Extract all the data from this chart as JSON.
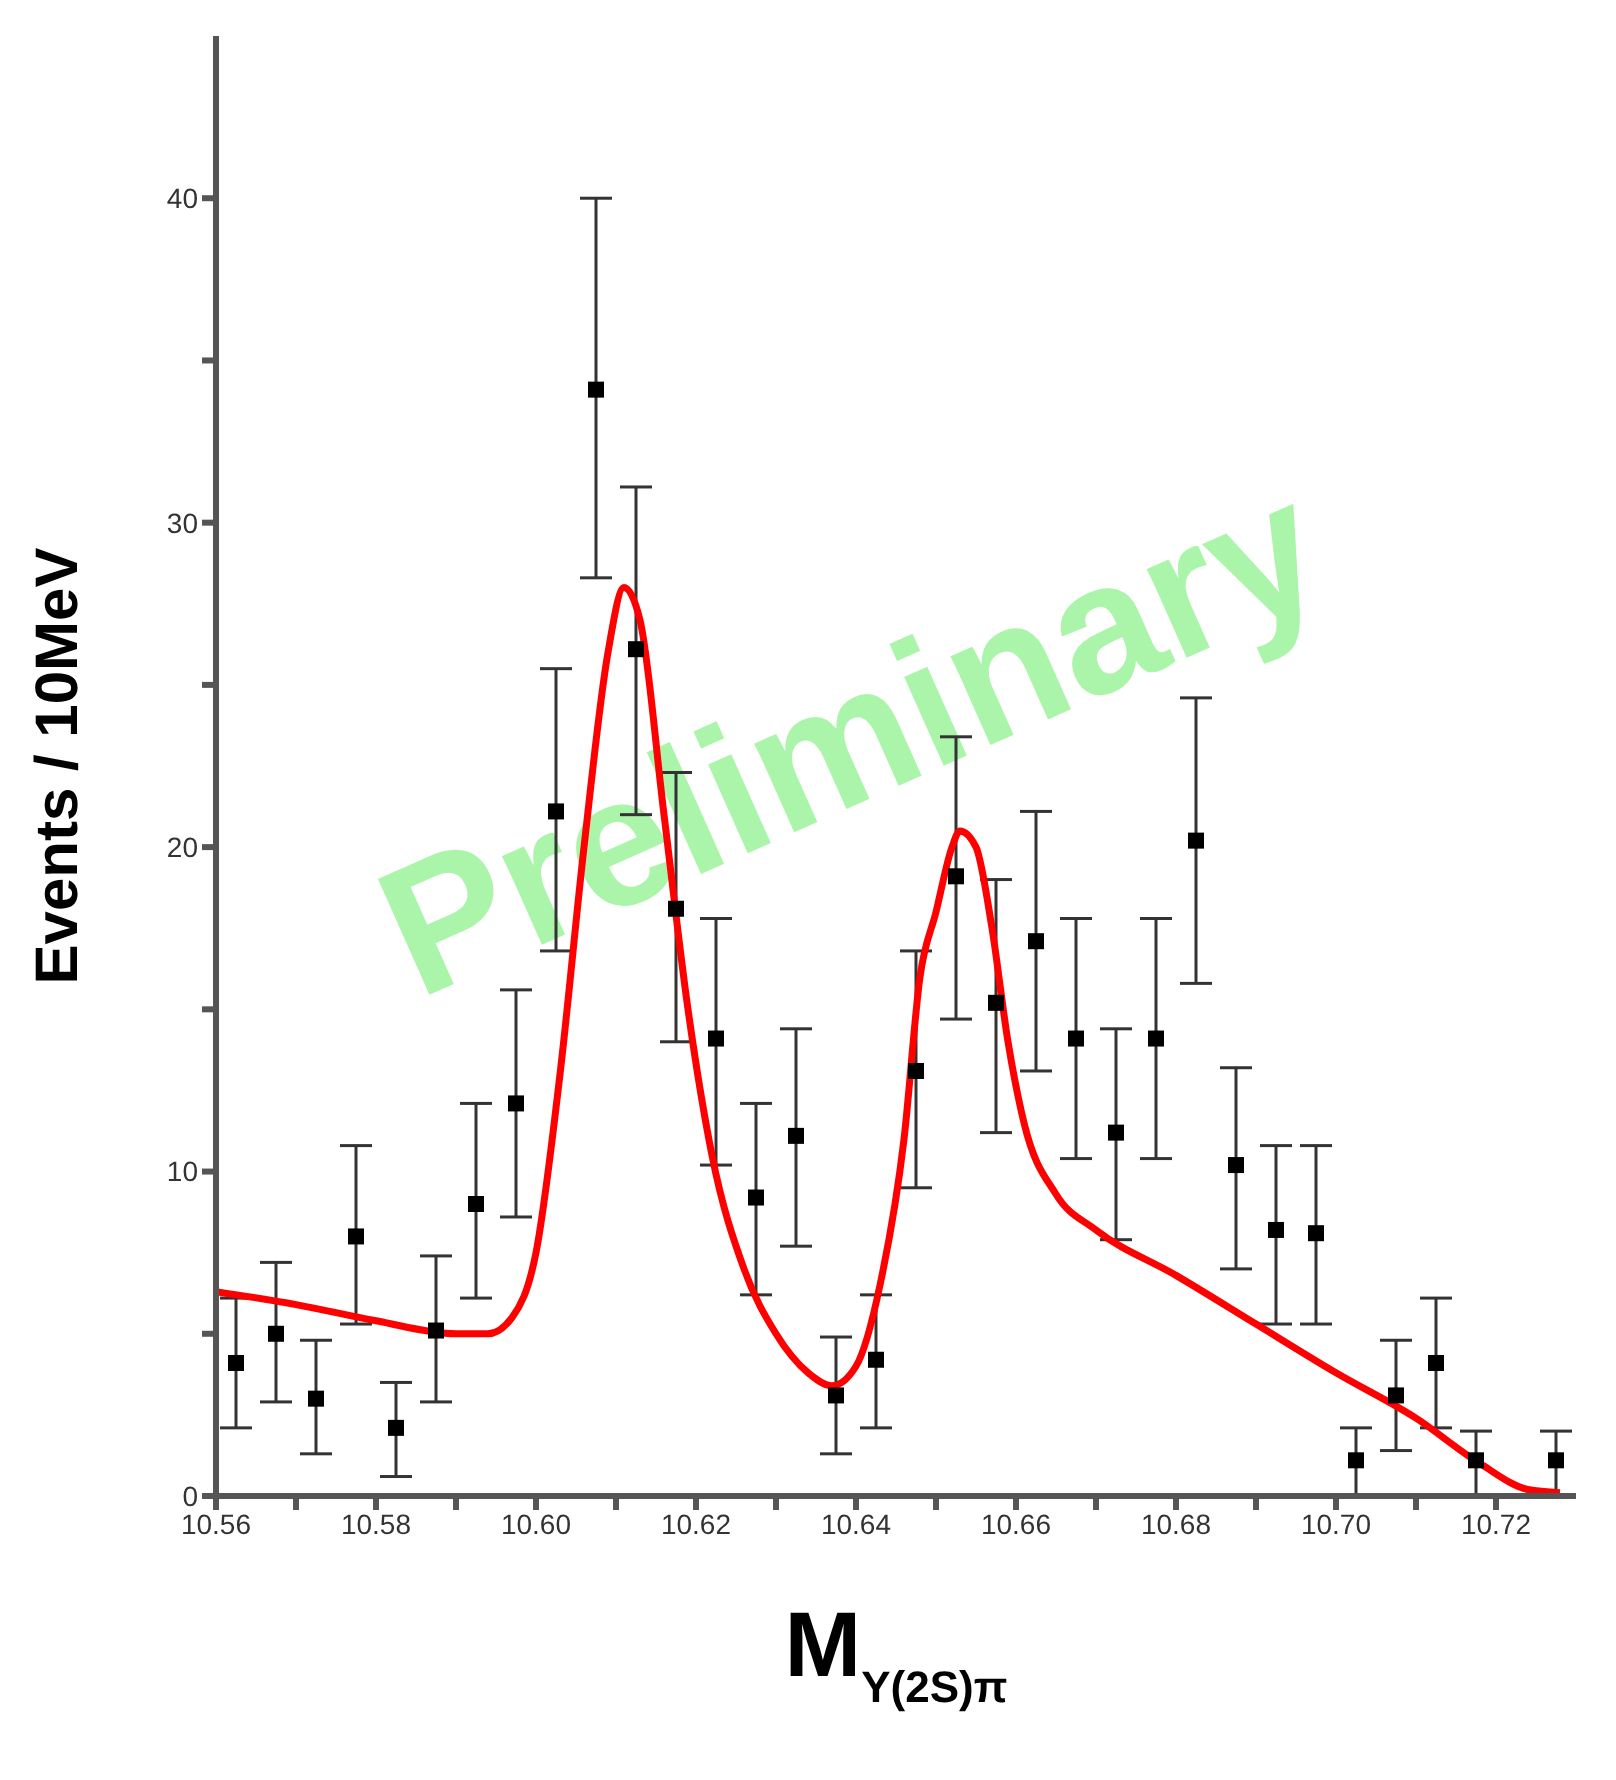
{
  "chart_data": {
    "type": "scatter",
    "xlabel": "M$_{Υ(2S)π}$",
    "ylabel": "Events / 10MeV",
    "annotations": [
      "Preliminary"
    ],
    "xlim": [
      10.56,
      10.73
    ],
    "ylim": [
      0,
      45
    ],
    "xticks": [
      10.56,
      {
        "value": 10.57,
        "label": null
      },
      10.58,
      {
        "value": 10.59,
        "label": null
      },
      {
        "value": 10.6,
        "label": "10.60"
      },
      {
        "value": 10.61,
        "label": null
      },
      10.62,
      {
        "value": 10.63,
        "label": null
      },
      10.64,
      {
        "value": 10.65,
        "label": null
      },
      10.66,
      {
        "value": 10.67,
        "label": null
      },
      10.68,
      {
        "value": 10.69,
        "label": null
      },
      {
        "value": 10.7,
        "label": "10.70"
      },
      {
        "value": 10.71,
        "label": null
      },
      10.72
    ],
    "yticks": [
      0,
      {
        "value": 5,
        "label": null
      },
      10,
      {
        "value": 15,
        "label": null
      },
      20,
      {
        "value": 25,
        "label": null
      },
      30,
      {
        "value": 35,
        "label": null
      },
      40
    ],
    "grid": false,
    "legend": false,
    "series": [
      {
        "color": "#000000",
        "marker": "square",
        "x": [
          10.5625,
          10.5675,
          10.5725,
          10.5775,
          10.5825,
          10.5875,
          10.5925,
          10.5975,
          10.6025,
          10.6075,
          10.6125,
          10.6175,
          10.6225,
          10.6275,
          10.6325,
          10.6375,
          10.6425,
          10.6475,
          10.6525,
          10.6575,
          10.6625,
          10.6675,
          10.6725,
          10.6775,
          10.6825,
          10.6875,
          10.6925,
          10.6975,
          10.7025,
          10.7075,
          10.7125,
          10.7175,
          10.7275
        ],
        "values": [
          4.1,
          5.0,
          3.0,
          8.0,
          2.1,
          5.1,
          9.0,
          12.1,
          21.1,
          34.1,
          26.1,
          18.1,
          14.1,
          9.2,
          11.1,
          3.1,
          4.2,
          13.1,
          19.1,
          15.2,
          17.1,
          14.1,
          11.2,
          14.1,
          20.2,
          10.2,
          8.2,
          8.1,
          1.1,
          3.1,
          4.1,
          1.1,
          1.1
        ],
        "errors": [
          [
            2.1,
            6.1
          ],
          [
            2.9,
            7.2
          ],
          [
            1.3,
            4.8
          ],
          [
            5.3,
            10.8
          ],
          [
            0.6,
            3.5
          ],
          [
            2.9,
            7.4
          ],
          [
            6.1,
            12.1
          ],
          [
            8.6,
            15.6
          ],
          [
            16.8,
            25.5
          ],
          [
            28.3,
            40.0
          ],
          [
            21.0,
            31.1
          ],
          [
            14.0,
            22.3
          ],
          [
            10.2,
            17.8
          ],
          [
            6.2,
            12.1
          ],
          [
            7.7,
            14.4
          ],
          [
            1.3,
            4.9
          ],
          [
            2.1,
            6.2
          ],
          [
            9.5,
            16.8
          ],
          [
            14.7,
            23.4
          ],
          [
            11.2,
            19.0
          ],
          [
            13.1,
            21.1
          ],
          [
            10.4,
            17.8
          ],
          [
            7.9,
            14.4
          ],
          [
            10.4,
            17.8
          ],
          [
            15.8,
            24.6
          ],
          [
            7.0,
            13.2
          ],
          [
            5.3,
            10.8
          ],
          [
            5.3,
            10.8
          ],
          [
            0.0,
            2.1
          ],
          [
            1.4,
            4.8
          ],
          [
            2.1,
            6.1
          ],
          [
            0.0,
            2.0
          ],
          [
            0.0,
            2.0
          ]
        ]
      },
      {
        "type": "line",
        "color": "#ff0000",
        "marker": "none",
        "line_style": "solid",
        "x": [
          10.56,
          10.57,
          10.58,
          10.59,
          10.594,
          10.597,
          10.6,
          10.603,
          10.606,
          10.609,
          10.611,
          10.613,
          10.616,
          10.619,
          10.622,
          10.626,
          10.63,
          10.634,
          10.637,
          10.64,
          10.643,
          10.646,
          10.648,
          10.65,
          10.652,
          10.653,
          10.655,
          10.657,
          10.659,
          10.661,
          10.665,
          10.67,
          10.68,
          10.69,
          10.7,
          10.71,
          10.718,
          10.724,
          10.728
        ],
        "values": [
          6.3,
          5.9,
          5.4,
          5.0,
          5.0,
          5.5,
          7.5,
          13,
          20,
          26,
          28,
          27,
          21,
          15,
          10.5,
          7,
          5,
          3.8,
          3.4,
          4.0,
          6.5,
          11,
          16,
          18,
          20,
          20.5,
          20,
          17.5,
          14,
          11.5,
          9.3,
          8.2,
          6.8,
          5.3,
          3.8,
          2.4,
          1.0,
          0.2,
          0.1
        ]
      }
    ]
  }
}
